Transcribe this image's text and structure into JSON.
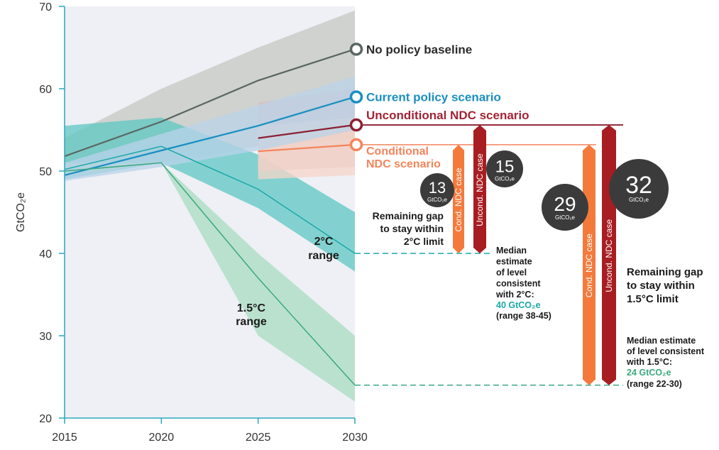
{
  "chart_data": {
    "type": "line",
    "ylabel": "GtCO₂e",
    "xlabel": "",
    "ylim": [
      20,
      70
    ],
    "xlim": [
      2015,
      2030
    ],
    "x_ticks": [
      "2015",
      "2020",
      "2025",
      "2030"
    ],
    "y_ticks": [
      "20",
      "30",
      "40",
      "50",
      "60",
      "70"
    ],
    "x_tick_values": [
      2015,
      2020,
      2025,
      2030
    ],
    "y_tick_values": [
      20,
      30,
      40,
      50,
      60,
      70
    ],
    "series": [
      {
        "name": "No policy baseline",
        "color": "#5a6660",
        "x": [
          2015,
          2020,
          2025,
          2030
        ],
        "values": [
          51.8,
          56,
          61,
          64.8
        ],
        "band_x": [
          2015,
          2020,
          2025,
          2030
        ],
        "band_low": [
          49.5,
          51,
          53,
          54
        ],
        "band_high": [
          54,
          60,
          65,
          69.5
        ],
        "band_color": "#c4c8c1"
      },
      {
        "name": "Current policy scenario",
        "color": "#1a8fc1",
        "x": [
          2015,
          2020,
          2025,
          2030
        ],
        "values": [
          49.5,
          52.5,
          55.5,
          59
        ],
        "band_x": [
          2015,
          2020,
          2025,
          2030
        ],
        "band_low": [
          48.8,
          50.5,
          52.5,
          55
        ],
        "band_high": [
          51,
          54.5,
          58,
          61.5
        ],
        "band_color": "#b9d3ea"
      },
      {
        "name": "Unconditional NDC scenario",
        "color": "#8b2032",
        "x": [
          2025,
          2030
        ],
        "values": [
          54,
          55.6
        ],
        "band_x": [
          2025,
          2030
        ],
        "band_low": [
          50,
          50.5
        ],
        "band_high": [
          58.3,
          60
        ],
        "band_color": "#d9bcc0"
      },
      {
        "name": "Conditional NDC scenario",
        "color": "#f5845b",
        "x": [
          2025,
          2030
        ],
        "values": [
          52.4,
          53.2
        ],
        "band_x": [
          2025,
          2030
        ],
        "band_low": [
          49,
          49.5
        ],
        "band_high": [
          55.5,
          56.5
        ],
        "band_color": "#f6d5c8"
      },
      {
        "name": "2°C range",
        "color": "#1ba8a8",
        "x": [
          2015,
          2020,
          2025,
          2030
        ],
        "values": [
          50.2,
          53,
          47.8,
          40
        ],
        "band_x": [
          2015,
          2020,
          2025,
          2030
        ],
        "band_low": [
          49,
          51,
          45.5,
          37.8
        ],
        "band_high": [
          55.5,
          56.5,
          52,
          45
        ],
        "band_color": "#5ec7c3"
      },
      {
        "name": "1.5°C range",
        "color": "#3aa87f",
        "x": [
          2015,
          2020,
          2025,
          2030
        ],
        "values": [
          50,
          51,
          37,
          24
        ],
        "band_x": [
          2015,
          2020,
          2025,
          2030
        ],
        "band_low": [
          49.5,
          51,
          30,
          22
        ],
        "band_high": [
          51,
          51,
          40,
          30
        ],
        "band_color": "#a8dcc0"
      }
    ],
    "series_labels": [
      {
        "text": "No policy baseline",
        "color": "#2b2b2b",
        "y": 64.8
      },
      {
        "text": "Current policy scenario",
        "color": "#1a8fc1",
        "y": 59
      },
      {
        "text": "Unconditional NDC scenario",
        "color": "#a32335",
        "y": 55.6
      },
      {
        "text": "Conditional",
        "color": "#f5845b",
        "y": 53.2
      },
      {
        "text": "NDC scenario",
        "color": "#f5845b",
        "y": 53.2
      }
    ],
    "range_labels": [
      {
        "line1": "2°C",
        "line2": "range"
      },
      {
        "line1": "1.5°C",
        "line2": "range"
      }
    ],
    "gap_bars": [
      {
        "label": "Cond. NDC case",
        "from": 53.2,
        "to": 40,
        "color": "#f47a3c",
        "gap": "13",
        "unit": "GtCO₂e"
      },
      {
        "label": "Uncond. NDC case",
        "from": 55.6,
        "to": 40,
        "color": "#a81d22",
        "gap": "15",
        "unit": "GtCO₂e"
      },
      {
        "label": "Cond. NDC case",
        "from": 53.2,
        "to": 24,
        "color": "#f47a3c",
        "gap": "29",
        "unit": "GtCO₂e"
      },
      {
        "label": "Uncond. NDC case",
        "from": 55.6,
        "to": 24,
        "color": "#a81d22",
        "gap": "32",
        "unit": "GtCO₂e"
      }
    ],
    "annotations": {
      "gap_2c": [
        "Remaining gap",
        "to stay within",
        "2°C limit"
      ],
      "gap_15c": [
        "Remaining gap",
        "to stay within",
        "1.5°C limit"
      ],
      "median_2c": [
        "Median",
        "estimate",
        "of level",
        "consistent",
        "with 2°C:"
      ],
      "median_2c_value": "40 GtCO₂e",
      "median_2c_range": "(range 38-45)",
      "median_15c": [
        "Median estimate",
        "of level consistent",
        "with 1.5°C:"
      ],
      "median_15c_value": "24 GtCO₂e",
      "median_15c_range": "(range 22-30)",
      "median_2c_level": 40,
      "median_15c_level": 24
    },
    "colors": {
      "axis": "#2aa7bd",
      "plot_bg": "#eef0f5",
      "axis_text": "#333333",
      "annotation_text": "#1a1a1a",
      "value_2c": "#1ba8a8",
      "value_15c": "#3aa87f",
      "bubble": "#3b3b3b",
      "bubble_text": "#ffffff"
    }
  }
}
